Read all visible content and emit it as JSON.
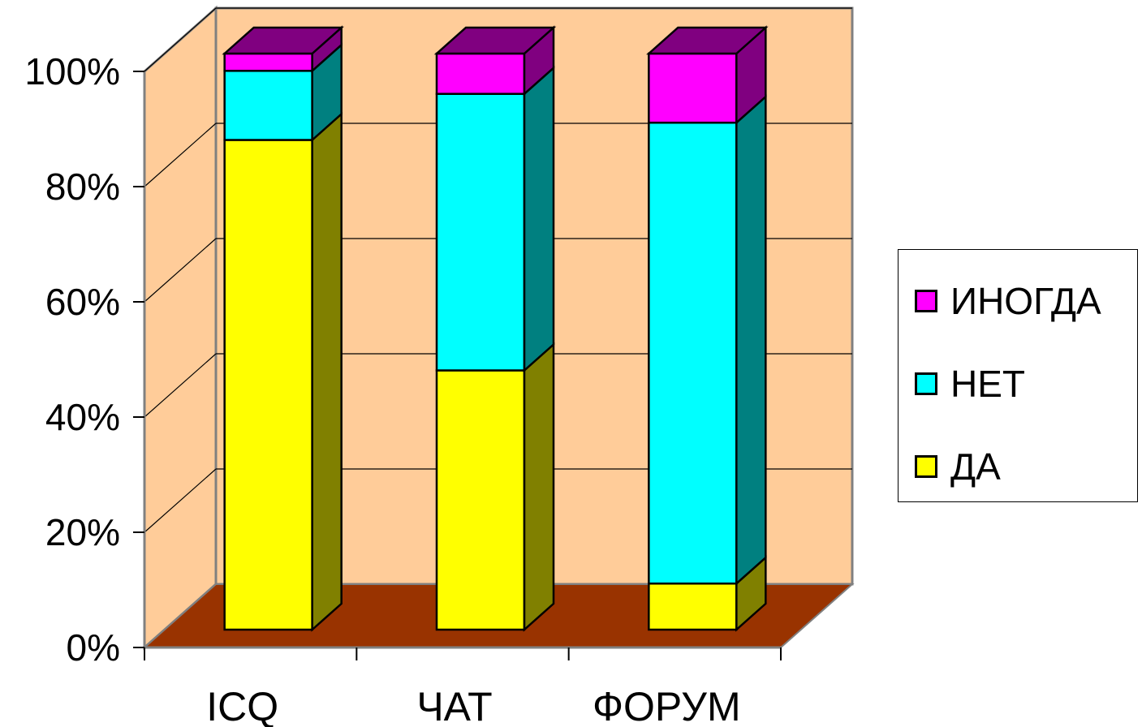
{
  "chart_data": {
    "type": "bar",
    "stacked": true,
    "percent": true,
    "three_d": true,
    "categories": [
      "ICQ",
      "ЧАТ",
      "ФОРУМ"
    ],
    "series": [
      {
        "name": "ДА",
        "values": [
          85,
          45,
          8
        ],
        "color": "#FFFF00",
        "side_color": "#808000"
      },
      {
        "name": "НЕТ",
        "values": [
          12,
          48,
          80
        ],
        "color": "#00FFFF",
        "side_color": "#008080"
      },
      {
        "name": "ИНОГДА",
        "values": [
          3,
          7,
          12
        ],
        "color": "#FF00FF",
        "side_color": "#800080"
      }
    ],
    "yticks": [
      "0%",
      "20%",
      "40%",
      "60%",
      "80%",
      "100%"
    ],
    "ylim": [
      0,
      100
    ],
    "grid": true,
    "legend_position": "right",
    "wall_color": "#FFCC99",
    "floor_color": "#993300"
  }
}
